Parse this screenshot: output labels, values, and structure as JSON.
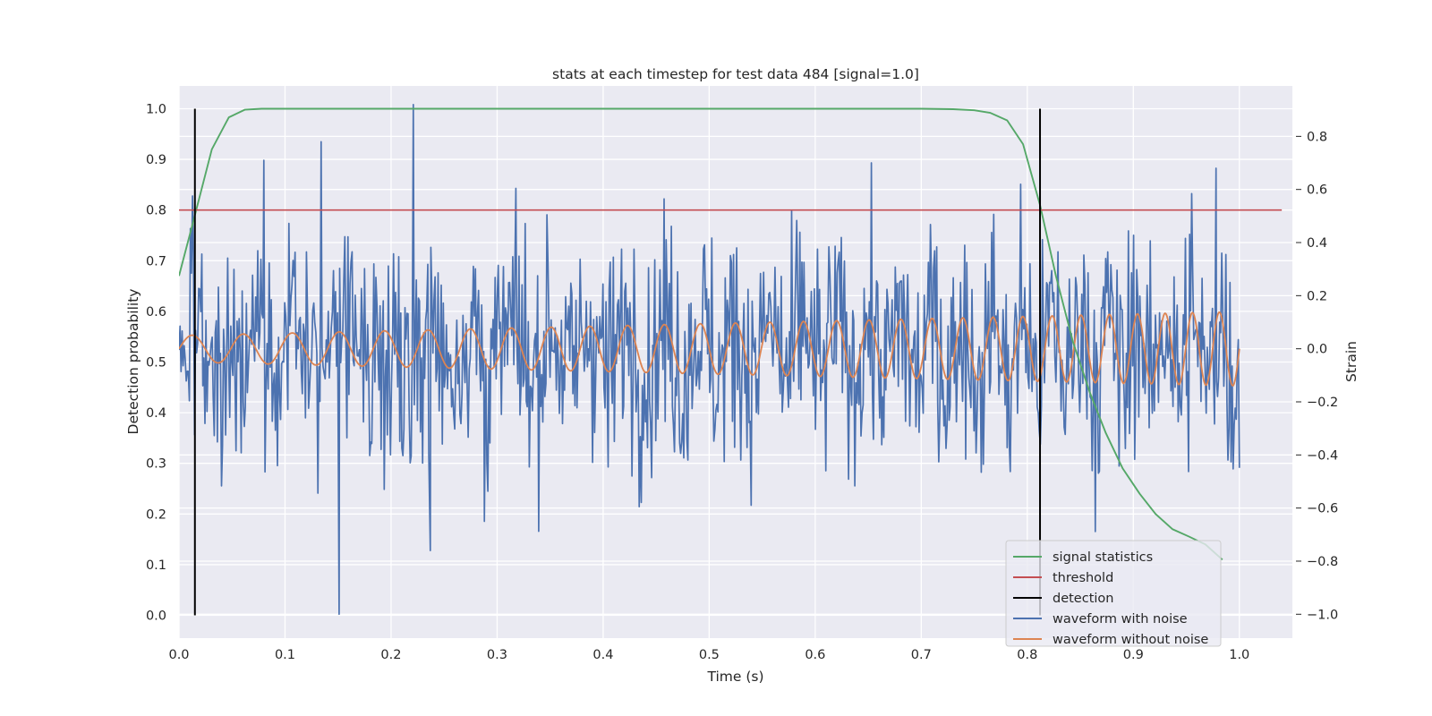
{
  "chart_data": {
    "type": "line",
    "title": "stats at each timestep for test data 484 [signal=1.0]",
    "xlabel": "Time (s)",
    "ylabel": "Detection probability",
    "ylabel_right": "Strain",
    "xlim": [
      0.0,
      1.05
    ],
    "ylim": [
      -0.045,
      1.045
    ],
    "ylim_right": [
      -1.09,
      0.99
    ],
    "xticks": [
      "0.0",
      "0.1",
      "0.2",
      "0.3",
      "0.4",
      "0.5",
      "0.6",
      "0.7",
      "0.8",
      "0.9",
      "1.0"
    ],
    "yticks": [
      "0.0",
      "0.1",
      "0.2",
      "0.3",
      "0.4",
      "0.5",
      "0.6",
      "0.7",
      "0.8",
      "0.9",
      "1.0"
    ],
    "yticks_right": [
      "−1.0",
      "−0.8",
      "−0.6",
      "−0.4",
      "−0.2",
      "0.0",
      "0.2",
      "0.4",
      "0.6",
      "0.8"
    ],
    "grid": true,
    "legend_position": "lower right",
    "series": [
      {
        "name": "signal statistics",
        "color": "#55a868",
        "axis": "left",
        "x": [
          0.0,
          0.015,
          0.031,
          0.047,
          0.062,
          0.078,
          0.093,
          0.109,
          0.2,
          0.4,
          0.6,
          0.7,
          0.73,
          0.75,
          0.765,
          0.781,
          0.796,
          0.812,
          0.827,
          0.843,
          0.859,
          0.874,
          0.89,
          0.906,
          0.921,
          0.937,
          0.953,
          0.968,
          0.984
        ],
        "y": [
          0.67,
          0.79,
          0.92,
          0.983,
          0.998,
          1.0,
          1.0,
          1.0,
          1.0,
          1.0,
          1.0,
          1.0,
          0.999,
          0.997,
          0.992,
          0.977,
          0.93,
          0.81,
          0.67,
          0.54,
          0.44,
          0.36,
          0.29,
          0.24,
          0.2,
          0.17,
          0.155,
          0.14,
          0.11
        ]
      },
      {
        "name": "threshold",
        "color": "#c44e52",
        "axis": "left",
        "x": [
          0.0,
          1.04
        ],
        "y": [
          0.8,
          0.8
        ]
      },
      {
        "name": "detection",
        "color": "#000000",
        "axis": "left",
        "x": [
          0.015,
          0.812
        ],
        "y": [
          1.0,
          1.0
        ]
      },
      {
        "name": "waveform with noise",
        "color": "#4c72b0",
        "axis": "right",
        "n_points": 1024,
        "amplitude_std": 0.28,
        "highlights": [
          {
            "x": 0.221,
            "y": 0.92
          },
          {
            "x": 0.151,
            "y": -1.0
          },
          {
            "x": 0.237,
            "y": -0.76
          },
          {
            "x": 0.134,
            "y": 0.78
          },
          {
            "x": 0.978,
            "y": 0.68
          },
          {
            "x": 0.08,
            "y": 0.71
          },
          {
            "x": 0.288,
            "y": -0.65
          }
        ]
      },
      {
        "name": "waveform without noise",
        "color": "#dd8452",
        "axis": "right",
        "x_start": 0.0,
        "x_end": 1.0,
        "amplitude_start": 0.05,
        "amplitude_end": 0.14,
        "cycles_per_second_start": 20,
        "cycles_per_second_end": 40
      }
    ]
  },
  "legend": {
    "items": [
      {
        "label": "signal statistics",
        "color": "#55a868"
      },
      {
        "label": "threshold",
        "color": "#c44e52"
      },
      {
        "label": "detection",
        "color": "#000000"
      },
      {
        "label": "waveform with noise",
        "color": "#4c72b0"
      },
      {
        "label": "waveform without noise",
        "color": "#dd8452"
      }
    ]
  }
}
